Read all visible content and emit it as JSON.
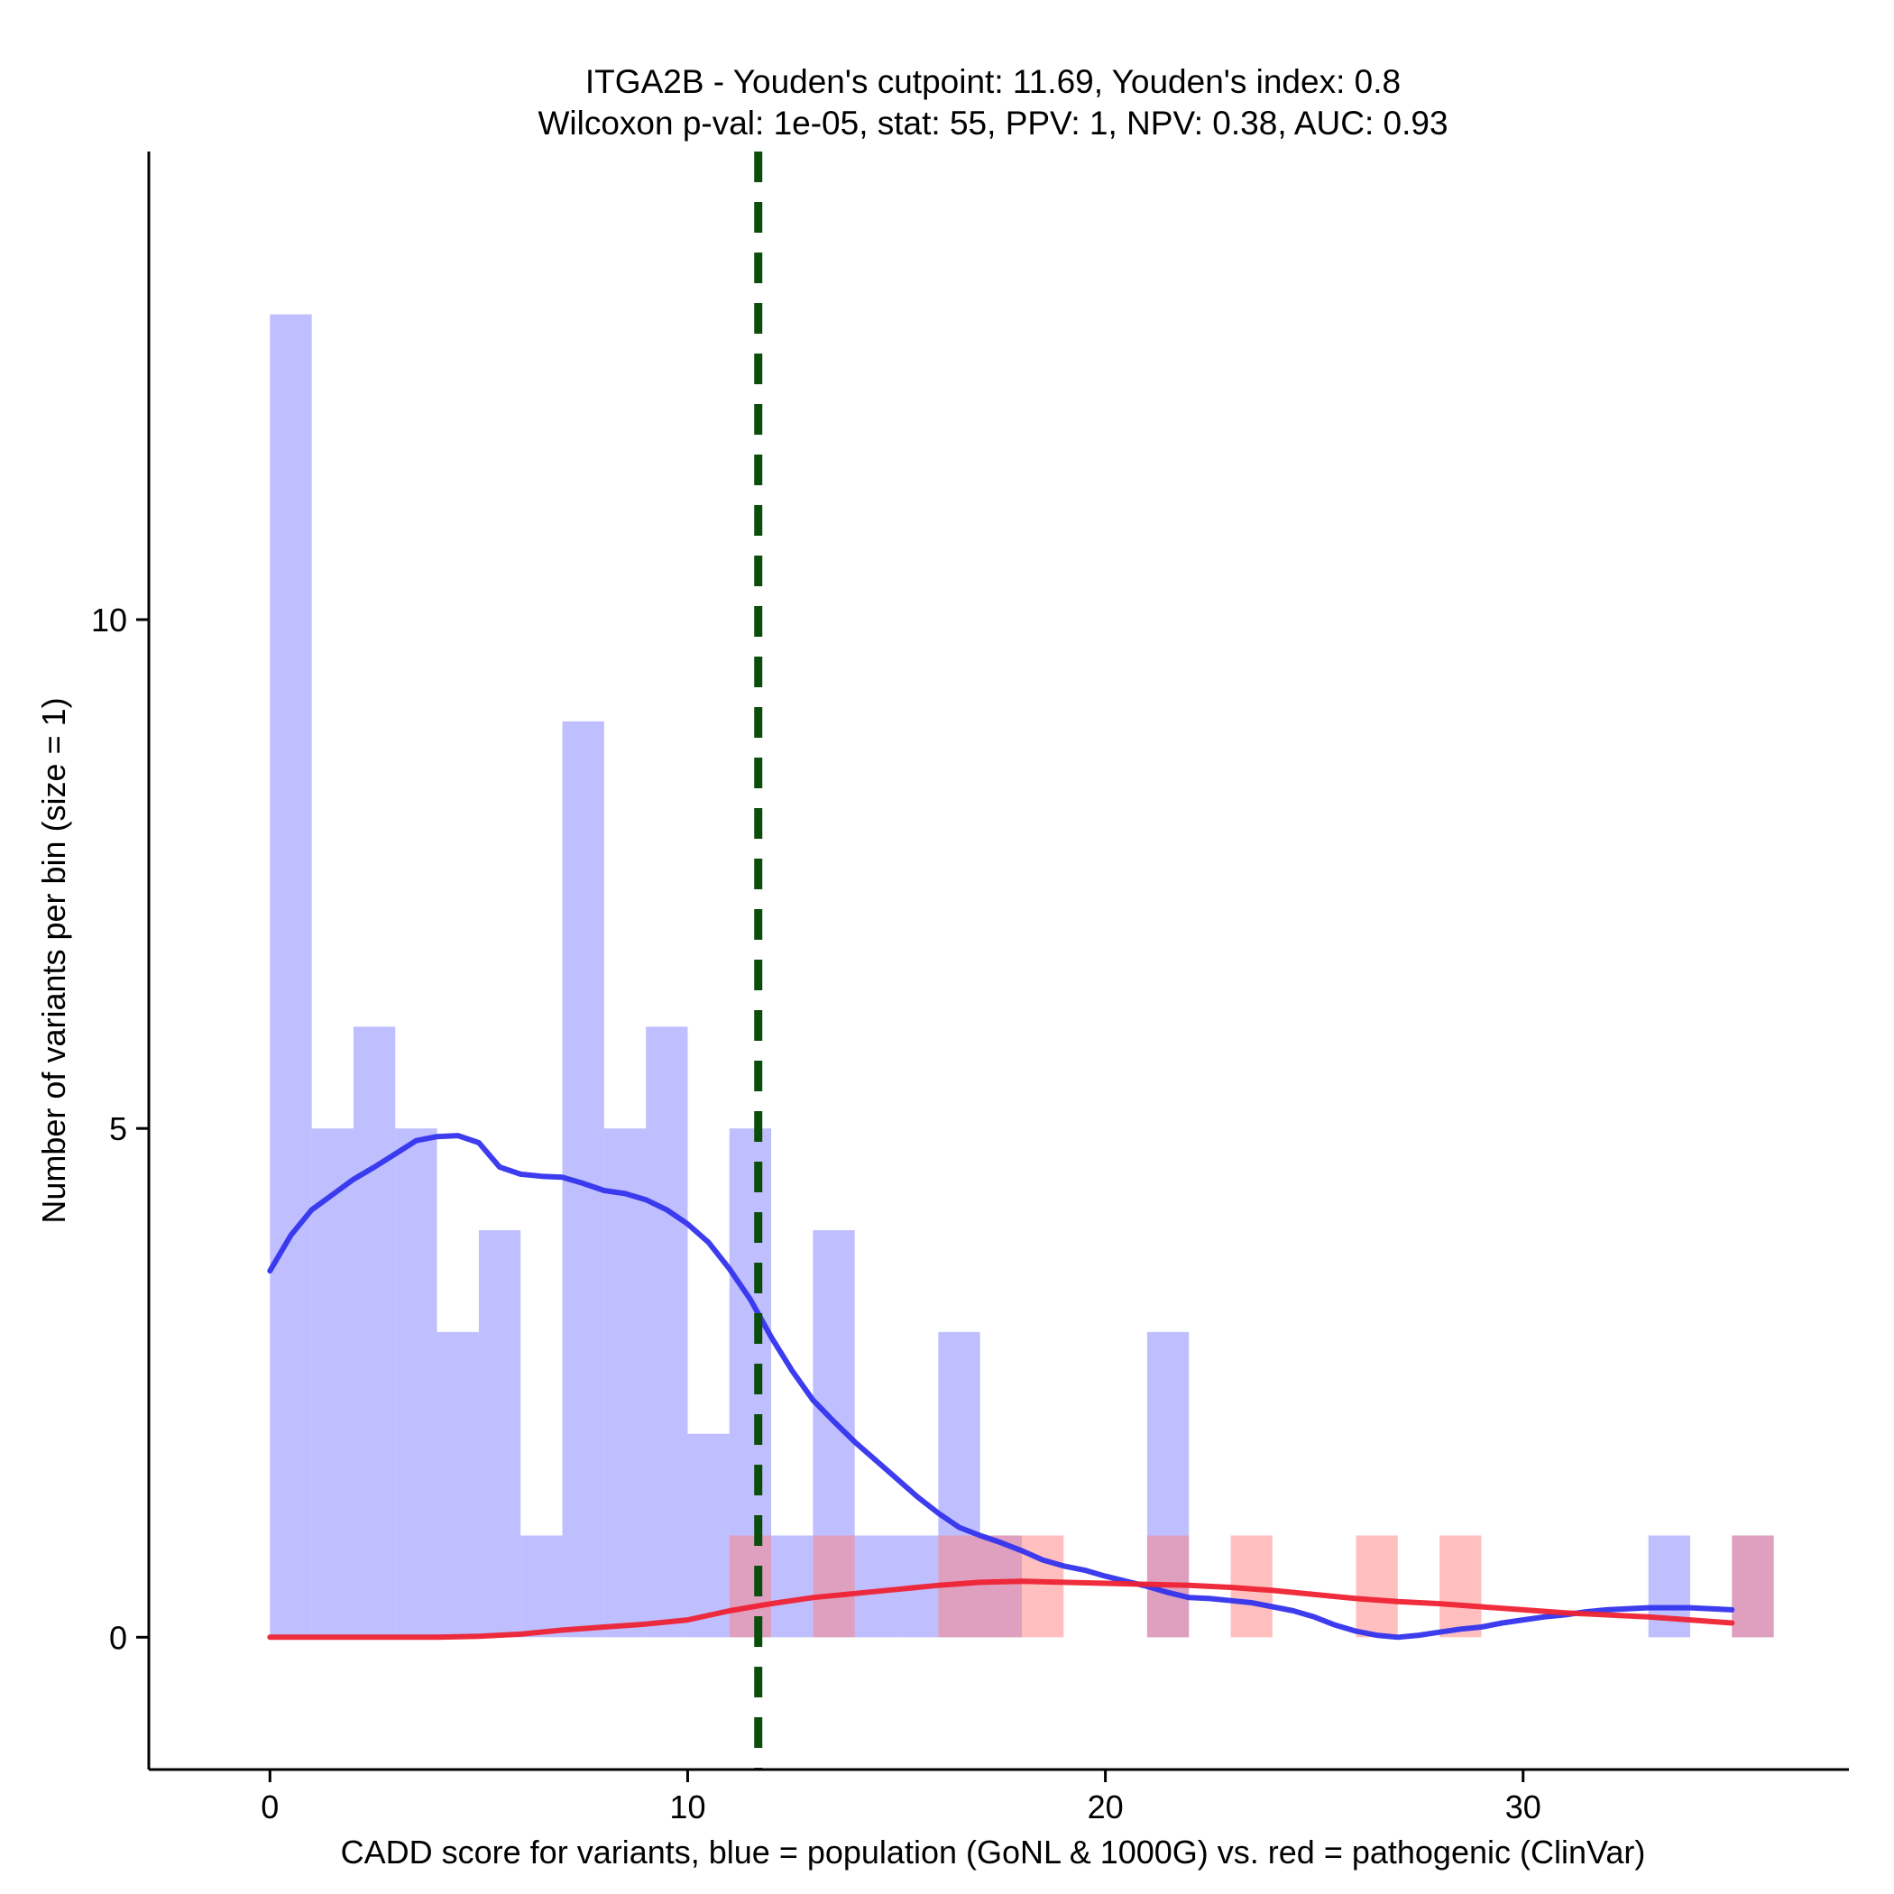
{
  "chart_data": {
    "type": "bar",
    "title_lines": [
      "ITGA2B - Youden's cutpoint: 11.69, Youden's index: 0.8",
      "Wilcoxon p-val: 1e-05, stat: 55, PPV: 1, NPV: 0.38, AUC: 0.93"
    ],
    "xlabel": "CADD score for variants, blue = population (GoNL & 1000G) vs. red = pathogenic (ClinVar)",
    "ylabel": "Number of variants per bin (size = 1)",
    "xlim": [
      -2.9,
      37.8
    ],
    "ylim": [
      -1.3,
      14.6
    ],
    "x_ticks": [
      0,
      10,
      20,
      30
    ],
    "y_ticks": [
      0,
      5,
      10
    ],
    "bin_width": 1,
    "cutpoint": 11.69,
    "series": [
      {
        "name": "population (GoNL & 1000G)",
        "color": "#8080ff",
        "bin_starts": [
          0,
          1,
          2,
          3,
          4,
          5,
          6,
          7,
          8,
          9,
          10,
          11,
          12,
          13,
          14,
          15,
          16,
          17,
          18,
          19,
          20,
          21,
          22,
          23,
          24,
          25,
          26,
          27,
          28,
          29,
          30,
          31,
          32,
          33,
          34,
          35
        ],
        "counts": [
          13,
          5,
          6,
          5,
          3,
          4,
          1,
          9,
          5,
          6,
          2,
          5,
          1,
          4,
          1,
          1,
          3,
          1,
          0,
          0,
          0,
          3,
          0,
          0,
          0,
          0,
          0,
          0,
          0,
          0,
          0,
          0,
          0,
          1,
          0,
          1
        ]
      },
      {
        "name": "pathogenic (ClinVar)",
        "color": "#ff8080",
        "bin_starts": [
          0,
          1,
          2,
          3,
          4,
          5,
          6,
          7,
          8,
          9,
          10,
          11,
          12,
          13,
          14,
          15,
          16,
          17,
          18,
          19,
          20,
          21,
          22,
          23,
          24,
          25,
          26,
          27,
          28,
          29,
          30,
          31,
          32,
          33,
          34,
          35
        ],
        "counts": [
          0,
          0,
          0,
          0,
          0,
          0,
          0,
          0,
          0,
          0,
          0,
          1,
          0,
          1,
          0,
          0,
          1,
          1,
          1,
          0,
          0,
          1,
          0,
          1,
          0,
          0,
          1,
          0,
          1,
          0,
          0,
          0,
          0,
          0,
          0,
          1
        ]
      }
    ],
    "density_curves": [
      {
        "name": "population density",
        "color": "#3333ee",
        "x": [
          0,
          0.5,
          1,
          1.5,
          2,
          2.5,
          3,
          3.5,
          4,
          4.5,
          5,
          5.5,
          6,
          6.5,
          7,
          7.5,
          8,
          8.5,
          9,
          9.5,
          10,
          10.5,
          11,
          11.5,
          12,
          12.5,
          13,
          13.5,
          14,
          14.5,
          15,
          15.5,
          16,
          16.5,
          17,
          17.5,
          18,
          18.5,
          19,
          19.5,
          20,
          20.5,
          21,
          21.5,
          22,
          22.5,
          23,
          23.5,
          24,
          24.5,
          25,
          25.5,
          26,
          26.5,
          27,
          27.5,
          28,
          28.5,
          29,
          29.5,
          30,
          30.5,
          31,
          31.5,
          32,
          32.5,
          33,
          33.5,
          34,
          34.5,
          35
        ],
        "y": [
          3.6,
          3.95,
          4.2,
          4.35,
          4.5,
          4.62,
          4.75,
          4.88,
          4.92,
          4.93,
          4.86,
          4.62,
          4.55,
          4.53,
          4.52,
          4.46,
          4.39,
          4.36,
          4.3,
          4.2,
          4.06,
          3.88,
          3.62,
          3.32,
          2.95,
          2.62,
          2.33,
          2.12,
          1.92,
          1.74,
          1.56,
          1.38,
          1.22,
          1.08,
          1.0,
          0.93,
          0.85,
          0.76,
          0.7,
          0.66,
          0.6,
          0.55,
          0.5,
          0.44,
          0.39,
          0.38,
          0.36,
          0.34,
          0.3,
          0.26,
          0.2,
          0.12,
          0.06,
          0.02,
          0.0,
          0.02,
          0.05,
          0.08,
          0.1,
          0.14,
          0.17,
          0.2,
          0.22,
          0.25,
          0.27,
          0.28,
          0.29,
          0.29,
          0.29,
          0.28,
          0.27
        ]
      },
      {
        "name": "pathogenic density",
        "color": "#ee2233",
        "x": [
          0,
          1,
          2,
          3,
          4,
          5,
          6,
          7,
          8,
          9,
          10,
          11,
          12,
          13,
          14,
          15,
          16,
          17,
          18,
          19,
          20,
          21,
          22,
          23,
          24,
          25,
          26,
          27,
          28,
          29,
          30,
          31,
          32,
          33,
          34,
          35
        ],
        "y": [
          0,
          0,
          0,
          0,
          0,
          0.01,
          0.03,
          0.07,
          0.1,
          0.13,
          0.17,
          0.26,
          0.33,
          0.39,
          0.43,
          0.47,
          0.51,
          0.54,
          0.55,
          0.54,
          0.53,
          0.52,
          0.51,
          0.49,
          0.46,
          0.42,
          0.38,
          0.35,
          0.33,
          0.3,
          0.27,
          0.24,
          0.22,
          0.2,
          0.17,
          0.14
        ]
      }
    ]
  }
}
